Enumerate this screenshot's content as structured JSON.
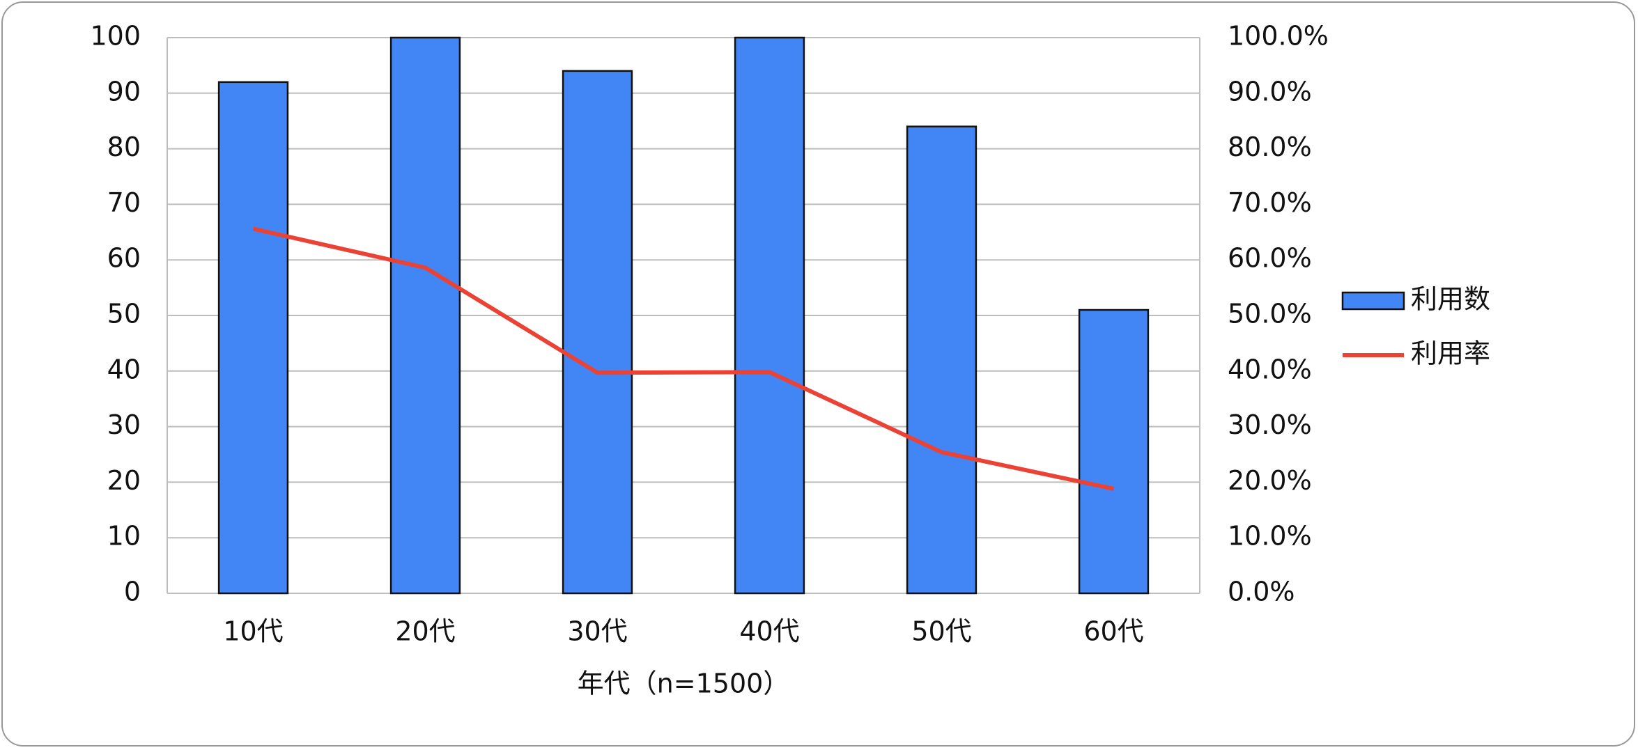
{
  "chart_data": {
    "type": "bar",
    "categories": [
      "10代",
      "20代",
      "30代",
      "40代",
      "50代",
      "60代"
    ],
    "x_label": "年代（n=1500）",
    "series": [
      {
        "name": "利用数",
        "type": "bar",
        "color": "#4285f4",
        "values": [
          92,
          100,
          94,
          100,
          84,
          51
        ]
      },
      {
        "name": "利用率",
        "type": "line",
        "axis": "y2",
        "color": "#ea4335",
        "values": [
          65.6,
          58.6,
          39.7,
          39.8,
          25.4,
          18.8
        ]
      }
    ],
    "ylim": [
      0,
      100
    ],
    "yticks": [
      0,
      10,
      20,
      30,
      40,
      50,
      60,
      70,
      80,
      90,
      100
    ],
    "y2lim": [
      0,
      100
    ],
    "y2ticks": [
      {
        "value": 0,
        "label": "0.0%"
      },
      {
        "value": 10,
        "label": "10.0%"
      },
      {
        "value": 20,
        "label": "20.0%"
      },
      {
        "value": 30,
        "label": "30.0%"
      },
      {
        "value": 40,
        "label": "40.0%"
      },
      {
        "value": 50,
        "label": "50.0%"
      },
      {
        "value": 60,
        "label": "60.0%"
      },
      {
        "value": 70,
        "label": "70.0%"
      },
      {
        "value": 80,
        "label": "80.0%"
      },
      {
        "value": 90,
        "label": "90.0%"
      },
      {
        "value": 100,
        "label": "100.0%"
      }
    ],
    "grid": true,
    "legend": "right"
  }
}
